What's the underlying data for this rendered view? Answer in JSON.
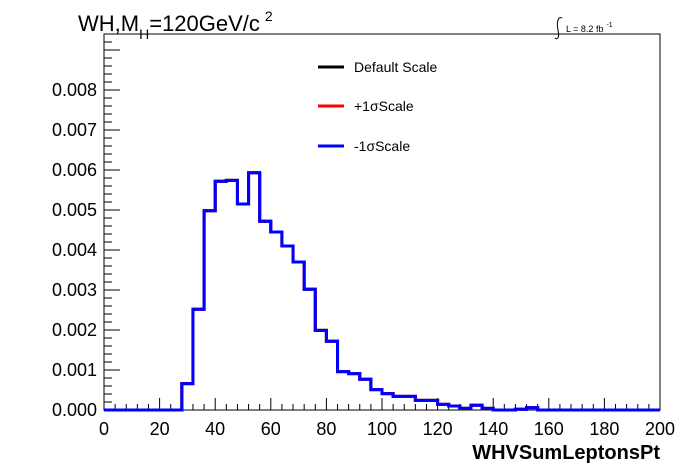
{
  "chart_data": {
    "type": "line",
    "title": {
      "prefix": "WH,M",
      "subscript": "H",
      "value": "=120GeV/c",
      "superscript": "2"
    },
    "luminosity": {
      "label": "L = 8.2 fb",
      "superscript": "-1"
    },
    "xlabel": "WHVSumLeptonsPt",
    "ylabel": "",
    "xlim": [
      0,
      200
    ],
    "ylim": [
      0,
      0.0094
    ],
    "x_ticks": [
      "0",
      "20",
      "40",
      "60",
      "80",
      "100",
      "120",
      "140",
      "160",
      "180",
      "200"
    ],
    "y_ticks": [
      "0.000",
      "0.001",
      "0.002",
      "0.003",
      "0.004",
      "0.005",
      "0.006",
      "0.007",
      "0.008"
    ],
    "grid": false,
    "legend_position": "top-center",
    "bin_edges": [
      0,
      4,
      8,
      12,
      16,
      20,
      24,
      28,
      32,
      36,
      40,
      44,
      48,
      52,
      56,
      60,
      64,
      68,
      72,
      76,
      80,
      84,
      88,
      92,
      96,
      100,
      104,
      108,
      112,
      116,
      120,
      124,
      128,
      132,
      136,
      140,
      144,
      148,
      152,
      156,
      160,
      164,
      168,
      172,
      176,
      180,
      184,
      188,
      192,
      196,
      200
    ],
    "series": [
      {
        "name": "Default Scale",
        "color": "#000000",
        "values": [
          0,
          0,
          0,
          0,
          0,
          0,
          0,
          0.00066,
          0.00252,
          0.00498,
          0.00572,
          0.00574,
          0.00515,
          0.00593,
          0.00472,
          0.00445,
          0.0041,
          0.0037,
          0.00302,
          0.00199,
          0.00172,
          0.00096,
          0.00091,
          0.00077,
          0.00051,
          0.00041,
          0.00034,
          0.00034,
          0.00024,
          0.00024,
          0.00014,
          0.0001,
          4e-05,
          0.00012,
          4e-05,
          0,
          0,
          2e-05,
          6e-05,
          0,
          0,
          0,
          0,
          0,
          0,
          0,
          0,
          0,
          0,
          0
        ]
      },
      {
        "name": "+1σScale",
        "color": "#ff0000",
        "values": [
          0,
          0,
          0,
          0,
          0,
          0,
          0,
          0.00066,
          0.00252,
          0.00498,
          0.00572,
          0.00574,
          0.00515,
          0.00593,
          0.00472,
          0.00445,
          0.0041,
          0.0037,
          0.00302,
          0.00199,
          0.00172,
          0.00096,
          0.00091,
          0.00077,
          0.00051,
          0.00041,
          0.00034,
          0.00034,
          0.00024,
          0.00024,
          0.00014,
          0.0001,
          4e-05,
          0.00012,
          4e-05,
          0,
          0,
          2e-05,
          6e-05,
          0,
          0,
          0,
          0,
          0,
          0,
          0,
          0,
          0,
          0,
          0
        ]
      },
      {
        "name": "-1σScale",
        "color": "#0000ff",
        "values": [
          0,
          0,
          0,
          0,
          0,
          0,
          0,
          0.00066,
          0.00252,
          0.00498,
          0.00572,
          0.00574,
          0.00515,
          0.00593,
          0.00472,
          0.00445,
          0.0041,
          0.0037,
          0.00302,
          0.00199,
          0.00172,
          0.00096,
          0.00091,
          0.00077,
          0.00051,
          0.00041,
          0.00034,
          0.00034,
          0.00024,
          0.00024,
          0.00014,
          0.0001,
          4e-05,
          0.00012,
          4e-05,
          0,
          0,
          2e-05,
          6e-05,
          0,
          0,
          0,
          0,
          0,
          0,
          0,
          0,
          0,
          0,
          0
        ]
      }
    ]
  }
}
